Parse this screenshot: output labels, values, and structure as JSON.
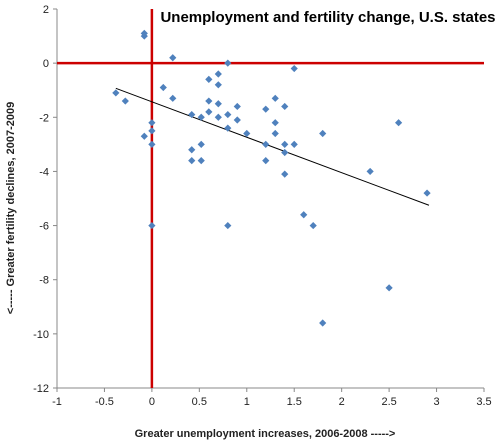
{
  "chart_data": {
    "type": "scatter",
    "title": "Unemployment and fertility change, U.S. states",
    "xlabel": "Greater unemployment increases, 2006-2008 ----->",
    "ylabel": "<----- Greater fertility declines, 2007-2009",
    "xlim": [
      -1,
      3.5
    ],
    "ylim": [
      -12,
      2
    ],
    "x_ticks": [
      -1,
      -0.5,
      0,
      0.5,
      1,
      1.5,
      2,
      2.5,
      3,
      3.5
    ],
    "x_tick_labels": [
      "-1",
      "-0.5",
      "0",
      "0.5",
      "1",
      "1.5",
      "2",
      "2.5",
      "3",
      "3.5"
    ],
    "y_ticks": [
      2,
      0,
      -2,
      -4,
      -6,
      -8,
      -10,
      -12
    ],
    "y_tick_labels": [
      "2",
      "0",
      "-2",
      "-4",
      "-6",
      "-8",
      "-10",
      "-12"
    ],
    "grid": false,
    "reference_lines": {
      "x": 0,
      "y": 0,
      "color": "#cc0000"
    },
    "marker_color": "#4f81bd",
    "trendline": {
      "x": [
        -0.38,
        2.92
      ],
      "y": [
        -0.93,
        -5.25
      ],
      "color": "#000000"
    },
    "points": [
      {
        "x": -0.08,
        "y": 1.0
      },
      {
        "x": -0.08,
        "y": 1.1
      },
      {
        "x": -0.38,
        "y": -1.1
      },
      {
        "x": -0.28,
        "y": -1.4
      },
      {
        "x": -0.08,
        "y": -2.7
      },
      {
        "x": 0.0,
        "y": -2.2
      },
      {
        "x": 0.0,
        "y": -2.5
      },
      {
        "x": 0.0,
        "y": -3.0
      },
      {
        "x": 0.0,
        "y": -6.0
      },
      {
        "x": 0.12,
        "y": -0.9
      },
      {
        "x": 0.22,
        "y": 0.2
      },
      {
        "x": 0.22,
        "y": -1.3
      },
      {
        "x": 0.42,
        "y": -1.9
      },
      {
        "x": 0.42,
        "y": -3.2
      },
      {
        "x": 0.42,
        "y": -3.6
      },
      {
        "x": 0.52,
        "y": -2.0
      },
      {
        "x": 0.52,
        "y": -3.0
      },
      {
        "x": 0.52,
        "y": -3.6
      },
      {
        "x": 0.6,
        "y": -0.6
      },
      {
        "x": 0.6,
        "y": -1.4
      },
      {
        "x": 0.6,
        "y": -1.8
      },
      {
        "x": 0.7,
        "y": -0.4
      },
      {
        "x": 0.7,
        "y": -0.8
      },
      {
        "x": 0.7,
        "y": -1.5
      },
      {
        "x": 0.7,
        "y": -2.0
      },
      {
        "x": 0.8,
        "y": 0.0
      },
      {
        "x": 0.8,
        "y": -1.9
      },
      {
        "x": 0.8,
        "y": -2.4
      },
      {
        "x": 0.8,
        "y": -6.0
      },
      {
        "x": 0.9,
        "y": -1.6
      },
      {
        "x": 0.9,
        "y": -2.1
      },
      {
        "x": 1.0,
        "y": -2.6
      },
      {
        "x": 1.2,
        "y": -1.7
      },
      {
        "x": 1.2,
        "y": -3.0
      },
      {
        "x": 1.2,
        "y": -3.6
      },
      {
        "x": 1.3,
        "y": -1.3
      },
      {
        "x": 1.3,
        "y": -2.2
      },
      {
        "x": 1.3,
        "y": -2.6
      },
      {
        "x": 1.4,
        "y": -1.6
      },
      {
        "x": 1.4,
        "y": -3.0
      },
      {
        "x": 1.4,
        "y": -3.3
      },
      {
        "x": 1.4,
        "y": -4.1
      },
      {
        "x": 1.5,
        "y": -0.2
      },
      {
        "x": 1.5,
        "y": -3.0
      },
      {
        "x": 1.6,
        "y": -5.6
      },
      {
        "x": 1.7,
        "y": -6.0
      },
      {
        "x": 1.8,
        "y": -2.6
      },
      {
        "x": 1.8,
        "y": -9.6
      },
      {
        "x": 2.3,
        "y": -4.0
      },
      {
        "x": 2.5,
        "y": -8.3
      },
      {
        "x": 2.6,
        "y": -2.2
      },
      {
        "x": 2.9,
        "y": -4.8
      }
    ]
  }
}
